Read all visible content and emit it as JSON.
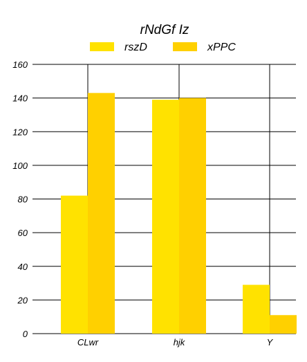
{
  "chart_data": {
    "type": "bar",
    "title": "rNdGf  Iz",
    "xlabel": "",
    "ylabel": "",
    "categories": [
      "CLwr",
      "hjk",
      "Y"
    ],
    "series": [
      {
        "name": "rszD",
        "values": [
          82,
          139,
          29
        ],
        "color": "#FFE200"
      },
      {
        "name": "xPPC",
        "values": [
          143,
          140,
          11
        ],
        "color": "#FFD000"
      }
    ],
    "ylim": [
      0,
      160
    ],
    "yticks": [
      "0",
      "20",
      "40",
      "60",
      "80",
      "100",
      "120",
      "140",
      "160"
    ],
    "grid": "horizontal",
    "legend_position": "top-center"
  }
}
